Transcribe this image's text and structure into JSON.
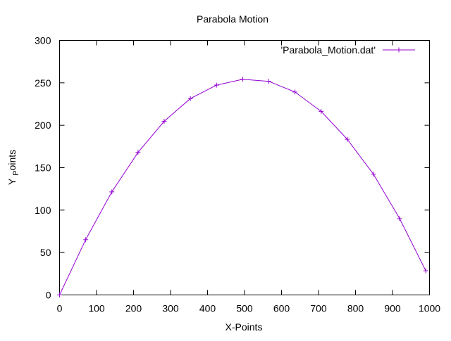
{
  "chart_data": {
    "type": "line",
    "title": "Parabola Motion",
    "xlabel": "X-Points",
    "ylabel_prefix": "Y",
    "ylabel_sub": "P",
    "ylabel_suffix": "oints",
    "xlim": [
      0,
      1000
    ],
    "ylim": [
      0,
      300
    ],
    "xticks": [
      0,
      100,
      200,
      300,
      400,
      500,
      600,
      700,
      800,
      900,
      1000
    ],
    "yticks": [
      0,
      50,
      100,
      150,
      200,
      250,
      300
    ],
    "grid": false,
    "legend_position": "top-right",
    "series": [
      {
        "name": "'Parabola_Motion.dat'",
        "color": "#9400d3",
        "marker": "plus",
        "x": [
          0,
          70.7,
          141.4,
          212.1,
          282.8,
          353.6,
          424.3,
          495.0,
          565.7,
          636.4,
          707.1,
          777.8,
          848.5,
          919.2,
          989.9
        ],
        "y": [
          0,
          65.2,
          121.5,
          168.1,
          204.7,
          231.5,
          247.3,
          254.2,
          251.8,
          239.2,
          216.4,
          183.5,
          142.3,
          90.0,
          28.5
        ]
      }
    ]
  }
}
